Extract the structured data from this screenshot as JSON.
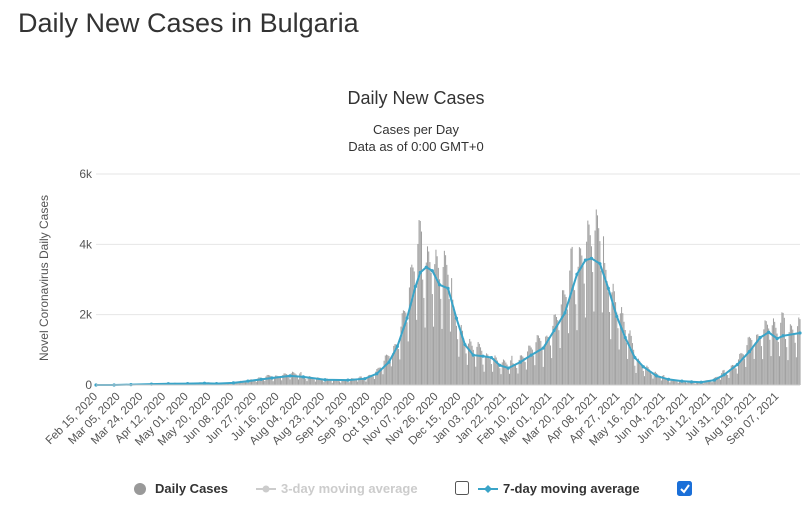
{
  "page": {
    "heading": "Daily New Cases in Bulgaria"
  },
  "chart_data": {
    "type": "bar",
    "title": "Daily New Cases",
    "subtitle_lines": [
      "Cases per Day",
      "Data as of 0:00 GMT+0"
    ],
    "ylabel": "Novel Coronavirus Daily Cases",
    "xlabel": "",
    "ylim": [
      0,
      6000
    ],
    "yticks": [
      0,
      2000,
      4000,
      6000
    ],
    "ytick_labels": [
      "0",
      "2k",
      "4k",
      "6k"
    ],
    "x_tick_labels": [
      "Feb 15, 2020",
      "Mar 05, 2020",
      "Mar 24, 2020",
      "Apr 12, 2020",
      "May 01, 2020",
      "May 20, 2020",
      "Jun 08, 2020",
      "Jun 27, 2020",
      "Jul 16, 2020",
      "Aug 04, 2020",
      "Aug 23, 2020",
      "Sep 11, 2020",
      "Sep 30, 2020",
      "Oct 19, 2020",
      "Nov 07, 2020",
      "Nov 26, 2020",
      "Dec 15, 2020",
      "Jan 03, 2021",
      "Jan 22, 2021",
      "Feb 10, 2021",
      "Mar 01, 2021",
      "Mar 20, 2021",
      "Apr 08, 2021",
      "Apr 27, 2021",
      "May 16, 2021",
      "Jun 04, 2021",
      "Jun 23, 2021",
      "Jul 12, 2021",
      "Jul 31, 2021",
      "Aug 19, 2021",
      "Sep 07, 2021"
    ],
    "x_range": [
      "2020-02-15",
      "2021-09-21"
    ],
    "grid": true,
    "legend_position": "bottom-center",
    "colors": {
      "bars": "#a0a0a0",
      "avg7": "#3aa4c8",
      "avg3": "#cccccc",
      "grid": "#e6e6e6",
      "checkbox_checked": "#1a6fd8"
    },
    "legend": [
      {
        "label": "Daily Cases",
        "marker": "circle",
        "active": true
      },
      {
        "label": "3-day moving average",
        "marker": "line-dot",
        "active": false,
        "checkbox_checked": false
      },
      {
        "label": "7-day moving average",
        "marker": "line-diamond",
        "active": true,
        "checkbox_checked": true
      }
    ],
    "series": [
      {
        "name": "Daily Cases",
        "type": "bar",
        "kind": "daily",
        "points": [
          [
            "2020-02-15",
            0
          ],
          [
            "2020-03-01",
            0
          ],
          [
            "2020-03-15",
            15
          ],
          [
            "2020-04-01",
            30
          ],
          [
            "2020-04-15",
            45
          ],
          [
            "2020-05-01",
            45
          ],
          [
            "2020-05-15",
            60
          ],
          [
            "2020-05-25",
            40
          ],
          [
            "2020-06-08",
            60
          ],
          [
            "2020-06-20",
            120
          ],
          [
            "2020-07-01",
            170
          ],
          [
            "2020-07-10",
            220
          ],
          [
            "2020-07-25",
            280
          ],
          [
            "2020-08-05",
            240
          ],
          [
            "2020-08-23",
            130
          ],
          [
            "2020-09-11",
            130
          ],
          [
            "2020-09-25",
            180
          ],
          [
            "2020-10-05",
            350
          ],
          [
            "2020-10-15",
            700
          ],
          [
            "2020-10-22",
            1200
          ],
          [
            "2020-10-30",
            2100
          ],
          [
            "2020-11-06",
            3000
          ],
          [
            "2020-11-10",
            3300
          ],
          [
            "2020-11-15",
            3400
          ],
          [
            "2020-11-20",
            3200
          ],
          [
            "2020-11-26",
            2800
          ],
          [
            "2020-12-03",
            2700
          ],
          [
            "2020-12-10",
            1800
          ],
          [
            "2020-12-17",
            1100
          ],
          [
            "2020-12-24",
            900
          ],
          [
            "2021-01-01",
            800
          ],
          [
            "2021-01-08",
            750
          ],
          [
            "2021-01-15",
            550
          ],
          [
            "2021-01-22",
            500
          ],
          [
            "2021-02-01",
            700
          ],
          [
            "2021-02-10",
            900
          ],
          [
            "2021-02-20",
            1100
          ],
          [
            "2021-03-01",
            1600
          ],
          [
            "2021-03-10",
            2100
          ],
          [
            "2021-03-20",
            3200
          ],
          [
            "2021-03-27",
            3600
          ],
          [
            "2021-04-01",
            3650
          ],
          [
            "2021-04-08",
            3500
          ],
          [
            "2021-04-15",
            2800
          ],
          [
            "2021-04-22",
            2000
          ],
          [
            "2021-04-29",
            1400
          ],
          [
            "2021-05-07",
            750
          ],
          [
            "2021-05-14",
            500
          ],
          [
            "2021-05-25",
            250
          ],
          [
            "2021-06-04",
            150
          ],
          [
            "2021-06-15",
            100
          ],
          [
            "2021-06-23",
            80
          ],
          [
            "2021-07-01",
            80
          ],
          [
            "2021-07-12",
            150
          ],
          [
            "2021-07-20",
            300
          ],
          [
            "2021-07-31",
            600
          ],
          [
            "2021-08-10",
            1000
          ],
          [
            "2021-08-19",
            1400
          ],
          [
            "2021-08-26",
            1550
          ],
          [
            "2021-09-02",
            1300
          ],
          [
            "2021-09-07",
            1450
          ],
          [
            "2021-09-21",
            1500
          ]
        ]
      },
      {
        "name": "7-day moving average",
        "type": "line",
        "points": [
          [
            "2020-02-15",
            0
          ],
          [
            "2020-03-01",
            0
          ],
          [
            "2020-03-15",
            10
          ],
          [
            "2020-04-01",
            25
          ],
          [
            "2020-04-15",
            35
          ],
          [
            "2020-05-01",
            40
          ],
          [
            "2020-05-15",
            50
          ],
          [
            "2020-05-25",
            40
          ],
          [
            "2020-06-08",
            60
          ],
          [
            "2020-06-20",
            110
          ],
          [
            "2020-07-01",
            160
          ],
          [
            "2020-07-10",
            200
          ],
          [
            "2020-07-25",
            260
          ],
          [
            "2020-08-05",
            230
          ],
          [
            "2020-08-23",
            150
          ],
          [
            "2020-09-11",
            140
          ],
          [
            "2020-09-25",
            180
          ],
          [
            "2020-10-05",
            320
          ],
          [
            "2020-10-15",
            650
          ],
          [
            "2020-10-22",
            1100
          ],
          [
            "2020-10-30",
            1900
          ],
          [
            "2020-11-06",
            2800
          ],
          [
            "2020-11-10",
            3200
          ],
          [
            "2020-11-15",
            3350
          ],
          [
            "2020-11-20",
            3250
          ],
          [
            "2020-11-26",
            2850
          ],
          [
            "2020-12-03",
            2750
          ],
          [
            "2020-12-10",
            1900
          ],
          [
            "2020-12-17",
            1150
          ],
          [
            "2020-12-24",
            850
          ],
          [
            "2021-01-01",
            820
          ],
          [
            "2021-01-08",
            780
          ],
          [
            "2021-01-15",
            560
          ],
          [
            "2021-01-22",
            480
          ],
          [
            "2021-02-01",
            650
          ],
          [
            "2021-02-10",
            850
          ],
          [
            "2021-02-20",
            1050
          ],
          [
            "2021-03-01",
            1550
          ],
          [
            "2021-03-10",
            2050
          ],
          [
            "2021-03-20",
            3150
          ],
          [
            "2021-03-27",
            3550
          ],
          [
            "2021-04-01",
            3600
          ],
          [
            "2021-04-08",
            3450
          ],
          [
            "2021-04-15",
            2750
          ],
          [
            "2021-04-22",
            1950
          ],
          [
            "2021-04-29",
            1350
          ],
          [
            "2021-05-07",
            780
          ],
          [
            "2021-05-14",
            520
          ],
          [
            "2021-05-25",
            260
          ],
          [
            "2021-06-04",
            160
          ],
          [
            "2021-06-15",
            110
          ],
          [
            "2021-06-23",
            90
          ],
          [
            "2021-07-01",
            80
          ],
          [
            "2021-07-12",
            140
          ],
          [
            "2021-07-20",
            290
          ],
          [
            "2021-07-31",
            580
          ],
          [
            "2021-08-10",
            950
          ],
          [
            "2021-08-19",
            1350
          ],
          [
            "2021-08-26",
            1500
          ],
          [
            "2021-09-02",
            1320
          ],
          [
            "2021-09-07",
            1400
          ],
          [
            "2021-09-21",
            1480
          ]
        ]
      }
    ]
  }
}
